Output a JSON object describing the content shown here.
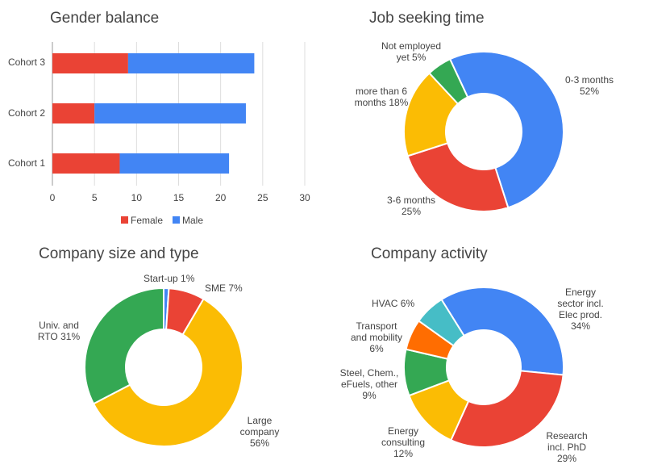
{
  "chart_data": [
    {
      "type": "bar",
      "orientation": "horizontal",
      "stacked": true,
      "title": "Gender balance",
      "categories": [
        "Cohort 3",
        "Cohort 2",
        "Cohort 1"
      ],
      "series": [
        {
          "name": "Female",
          "values": [
            9,
            5,
            8
          ],
          "color": "#ea4335"
        },
        {
          "name": "Male",
          "values": [
            15,
            18,
            13
          ],
          "color": "#4285f4"
        }
      ],
      "xticks": [
        "0",
        "5",
        "10",
        "15",
        "20",
        "25",
        "30"
      ],
      "xlim": [
        0,
        30
      ],
      "grid": true,
      "legend": "bottom"
    },
    {
      "type": "pie",
      "donut": true,
      "title": "Job seeking time",
      "slices": [
        {
          "label": "0-3 months",
          "pct": "52%",
          "value": 52,
          "color": "#4285f4"
        },
        {
          "label": "3-6 months",
          "pct": "25%",
          "value": 25,
          "color": "#ea4335"
        },
        {
          "label": "more than 6 months",
          "pct": "18%",
          "value": 18,
          "color": "#fbbc04"
        },
        {
          "label": "Not employed yet",
          "pct": "5%",
          "value": 5,
          "color": "#34a853"
        }
      ]
    },
    {
      "type": "pie",
      "donut": true,
      "title": "Company size and type",
      "slices": [
        {
          "label": "Start-up",
          "pct": "1%",
          "value": 1,
          "color": "#4285f4"
        },
        {
          "label": "SME",
          "pct": "7%",
          "value": 7,
          "color": "#ea4335"
        },
        {
          "label": "Large company",
          "pct": "56%",
          "value": 56,
          "color": "#fbbc04"
        },
        {
          "label": "Univ. and RTO",
          "pct": "31%",
          "value": 31,
          "color": "#34a853"
        }
      ]
    },
    {
      "type": "pie",
      "donut": true,
      "title": "Company activity",
      "slices": [
        {
          "label": "Energy sector incl. Elec prod.",
          "pct": "34%",
          "value": 34,
          "color": "#4285f4"
        },
        {
          "label": "Research incl. PhD",
          "pct": "29%",
          "value": 29,
          "color": "#ea4335"
        },
        {
          "label": "Energy consulting",
          "pct": "12%",
          "value": 12,
          "color": "#fbbc04"
        },
        {
          "label": "Steel, Chem., eFuels, other",
          "pct": "9%",
          "value": 9,
          "color": "#34a853"
        },
        {
          "label": "Transport and mobility",
          "pct": "6%",
          "value": 6,
          "color": "#ff6d01"
        },
        {
          "label": "HVAC",
          "pct": "6%",
          "value": 6,
          "color": "#46bdc6"
        }
      ]
    }
  ]
}
